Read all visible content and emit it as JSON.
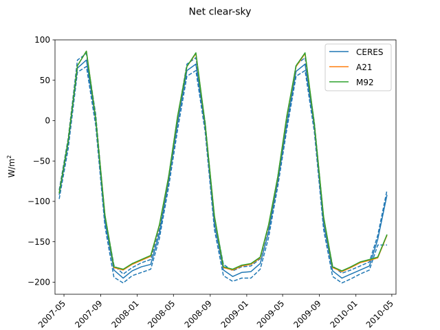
{
  "chart_data": {
    "type": "line",
    "title": "Net clear-sky",
    "xlabel": "",
    "ylabel": "W/m",
    "ylabel_superscript": "2",
    "ylim": [
      -215,
      100
    ],
    "xlim": [
      "2007-04-01",
      "2010-05-15"
    ],
    "yticks": [
      100,
      50,
      0,
      -50,
      -100,
      -150,
      -200
    ],
    "xticks": [
      "2007-05",
      "2007-09",
      "2008-01",
      "2008-05",
      "2008-09",
      "2009-01",
      "2009-05",
      "2009-09",
      "2010-01",
      "2010-05"
    ],
    "legend": {
      "location": "upper right",
      "entries": [
        "CERES",
        "A21",
        "M92"
      ]
    },
    "colors": {
      "CERES": "#1f77b4",
      "A21": "#ff7f0e",
      "M92": "#2ca02c"
    },
    "x": [
      "2007-04-15",
      "2007-05-15",
      "2007-06-15",
      "2007-07-15",
      "2007-08-15",
      "2007-09-15",
      "2007-10-15",
      "2007-11-15",
      "2007-12-15",
      "2008-01-15",
      "2008-02-15",
      "2008-03-15",
      "2008-04-15",
      "2008-05-15",
      "2008-06-15",
      "2008-07-15",
      "2008-08-15",
      "2008-09-15",
      "2008-10-15",
      "2008-11-15",
      "2008-12-15",
      "2009-01-15",
      "2009-02-15",
      "2009-03-15",
      "2009-04-15",
      "2009-05-15",
      "2009-06-15",
      "2009-07-15",
      "2009-08-15",
      "2009-09-15",
      "2009-10-15",
      "2009-11-15",
      "2009-12-15",
      "2010-01-15",
      "2010-02-15",
      "2010-03-15",
      "2010-04-15"
    ],
    "series": [
      {
        "name": "CERES",
        "style": "solid",
        "values": [
          -92,
          -28,
          65,
          75,
          1,
          -125,
          -185,
          -195,
          -186,
          -181,
          -178,
          -140,
          -75,
          -3,
          62,
          70,
          -8,
          -128,
          -185,
          -193,
          -188,
          -187,
          -177,
          -138,
          -75,
          -5,
          61,
          70,
          -8,
          -128,
          -186,
          -195,
          -190,
          -185,
          -180,
          -147,
          -92
        ]
      },
      {
        "name": "CERES upper bound",
        "style": "dashed",
        "values": [
          -86,
          -22,
          75,
          83,
          8,
          -118,
          -179,
          -190,
          -182,
          -176,
          -172,
          -135,
          -69,
          4,
          70,
          78,
          -2,
          -121,
          -178,
          -186,
          -181,
          -180,
          -171,
          -132,
          -69,
          1,
          69,
          78,
          -2,
          -121,
          -180,
          -189,
          -185,
          -180,
          -175,
          -142,
          -86
        ]
      },
      {
        "name": "CERES lower bound",
        "style": "dashed",
        "values": [
          -97,
          -35,
          60,
          67,
          -6,
          -131,
          -194,
          -201,
          -192,
          -188,
          -184,
          -146,
          -82,
          -11,
          55,
          62,
          -14,
          -135,
          -192,
          -199,
          -195,
          -195,
          -184,
          -145,
          -81,
          -11,
          55,
          62,
          -14,
          -135,
          -193,
          -201,
          -196,
          -190,
          -185,
          -154,
          -154
        ]
      },
      {
        "name": "A21",
        "style": "solid",
        "values": [
          -90,
          -25,
          68,
          86,
          3,
          -117,
          -182,
          -185,
          -178,
          -173,
          -168,
          -130,
          -70,
          5,
          67,
          83,
          -5,
          -119,
          -182,
          -185,
          -180,
          -178,
          -170,
          -130,
          -70,
          5,
          67,
          83,
          -5,
          -120,
          -182,
          -187,
          -182,
          -176,
          -173,
          -170,
          -142
        ]
      },
      {
        "name": "M92",
        "style": "solid",
        "values": [
          -90,
          -25,
          68,
          86,
          3,
          -117,
          -181,
          -184,
          -177,
          -172,
          -167,
          -129,
          -69,
          6,
          67,
          84,
          -4,
          -118,
          -181,
          -184,
          -179,
          -177,
          -169,
          -129,
          -69,
          6,
          68,
          84,
          -4,
          -119,
          -181,
          -186,
          -181,
          -175,
          -172,
          -169,
          -141
        ]
      }
    ]
  }
}
